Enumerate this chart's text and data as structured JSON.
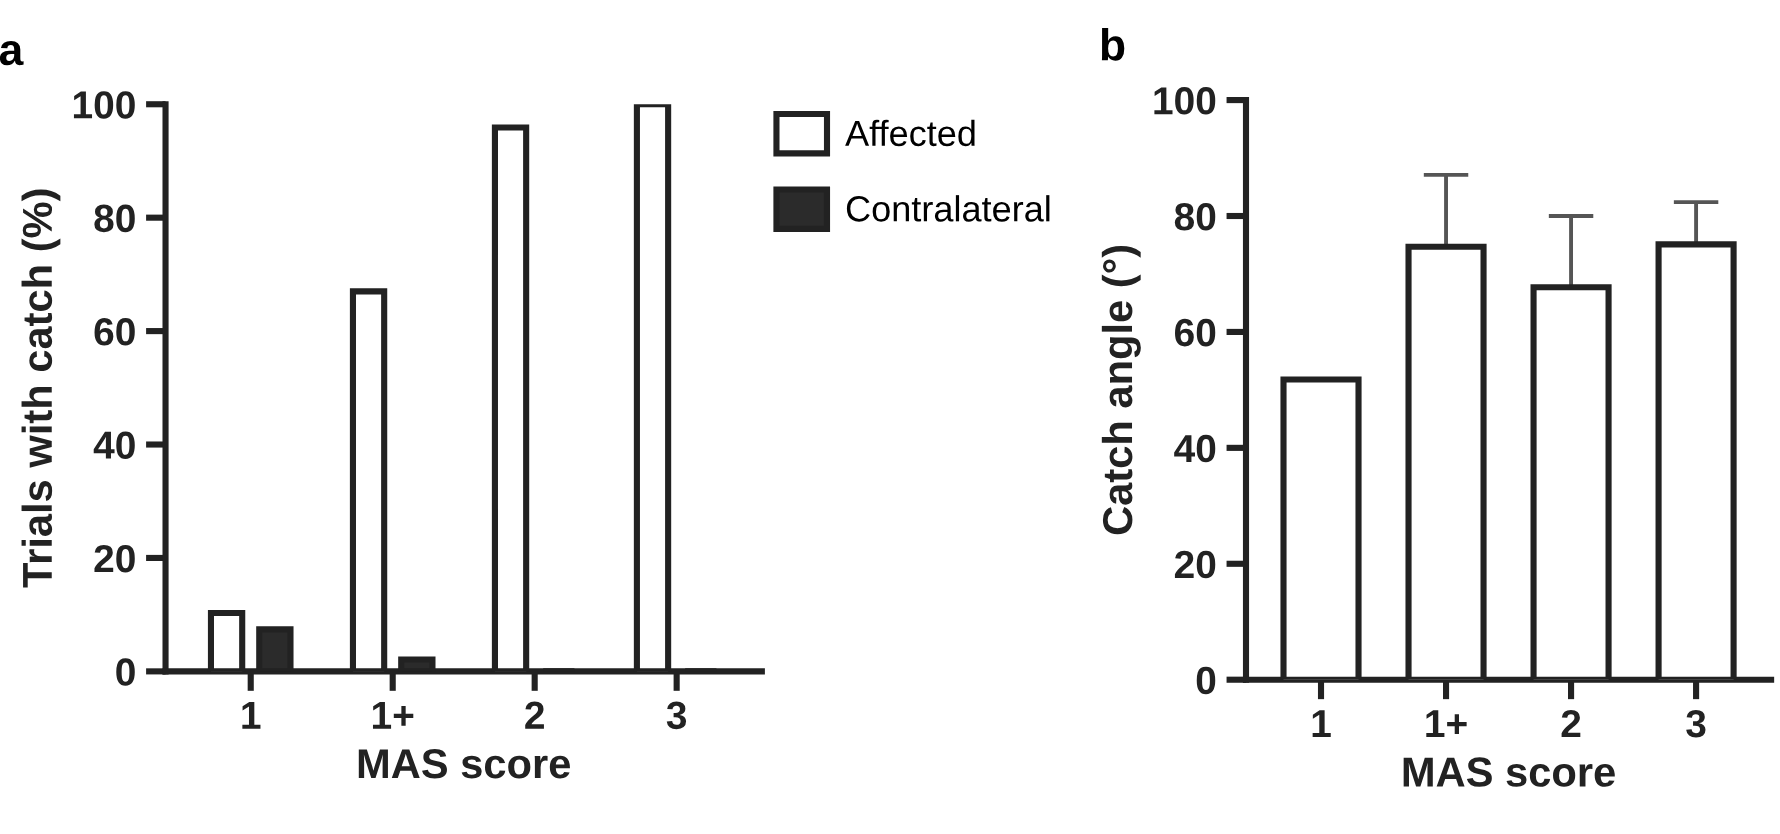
{
  "chart_data": [
    {
      "type": "bar",
      "title": "a",
      "xlabel": "MAS score",
      "ylabel": "Trials with catch (%)",
      "categories": [
        "1",
        "1+",
        "2",
        "3"
      ],
      "series": [
        {
          "name": "Affected",
          "color": "#ffffff",
          "values": [
            10.3,
            67,
            95.9,
            100
          ]
        },
        {
          "name": "Contralateral",
          "color": "#2b2b2b",
          "values": [
            7.4,
            2.1,
            0,
            0
          ]
        }
      ],
      "ylim": [
        0,
        100
      ],
      "yticks": [
        0,
        20,
        40,
        60,
        80,
        100
      ],
      "grid": false,
      "legend": "top right"
    },
    {
      "type": "bar",
      "title": "b",
      "xlabel": "MAS score",
      "ylabel": "Catch angle (°)",
      "categories": [
        "1",
        "1+",
        "2",
        "3"
      ],
      "series": [
        {
          "color": "#ffffff",
          "values": [
            51.8,
            74.7,
            67.7,
            75.1
          ],
          "errors": [
            null,
            [
              74.7,
              87.1
            ],
            [
              67.7,
              80.0
            ],
            [
              75.1,
              82.4
            ]
          ]
        }
      ],
      "ylim": [
        0,
        100
      ],
      "yticks": [
        0,
        20,
        40,
        60,
        80,
        100
      ],
      "grid": false
    }
  ]
}
